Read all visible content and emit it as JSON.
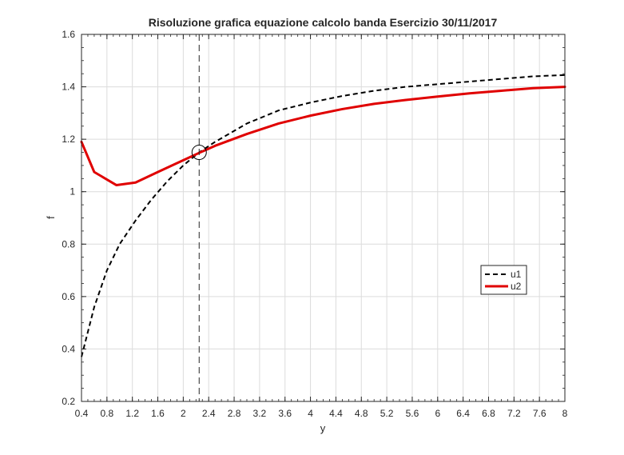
{
  "chart_data": {
    "type": "line",
    "title": "Risoluzione grafica equazione calcolo banda Esercizio 30/11/2017",
    "xlabel": "y",
    "ylabel": "f",
    "xlim": [
      0.4,
      8
    ],
    "ylim": [
      0.2,
      1.6
    ],
    "xticks": [
      "0.4",
      "0.8",
      "1.2",
      "1.6",
      "2",
      "2.4",
      "2.8",
      "3.2",
      "3.6",
      "4",
      "4.4",
      "4.8",
      "5.2",
      "5.6",
      "6",
      "6.4",
      "6.8",
      "7.2",
      "7.6",
      "8"
    ],
    "yticks": [
      "0.2",
      "0.4",
      "0.6",
      "0.8",
      "1",
      "1.2",
      "1.4",
      "1.6"
    ],
    "grid": true,
    "minor_ticks": true,
    "legend_position": "center-right",
    "series": [
      {
        "name": "u1",
        "color": "#000000",
        "style": "dashed",
        "x": [
          0.4,
          0.6,
          0.8,
          1.0,
          1.25,
          1.5,
          1.75,
          2.0,
          2.25,
          2.5,
          3.0,
          3.5,
          4.0,
          4.5,
          5.0,
          5.5,
          6.0,
          6.5,
          7.0,
          7.5,
          8.0
        ],
        "y": [
          0.37,
          0.56,
          0.7,
          0.8,
          0.89,
          0.97,
          1.04,
          1.1,
          1.15,
          1.19,
          1.26,
          1.31,
          1.34,
          1.365,
          1.385,
          1.4,
          1.41,
          1.42,
          1.43,
          1.44,
          1.445
        ]
      },
      {
        "name": "u2",
        "color": "#e00000",
        "style": "solid",
        "x": [
          0.4,
          0.6,
          0.95,
          1.25,
          1.6,
          2.0,
          2.25,
          2.5,
          3.0,
          3.5,
          4.0,
          4.5,
          5.0,
          5.5,
          6.0,
          6.5,
          7.0,
          7.5,
          8.0
        ],
        "y": [
          1.19,
          1.075,
          1.025,
          1.035,
          1.075,
          1.12,
          1.148,
          1.175,
          1.22,
          1.26,
          1.29,
          1.315,
          1.335,
          1.35,
          1.363,
          1.375,
          1.385,
          1.395,
          1.4
        ]
      }
    ],
    "annotations": [
      {
        "type": "vertical-dashed-line",
        "x": 2.25
      },
      {
        "type": "circle-marker",
        "x": 2.25,
        "y": 1.15
      }
    ]
  }
}
